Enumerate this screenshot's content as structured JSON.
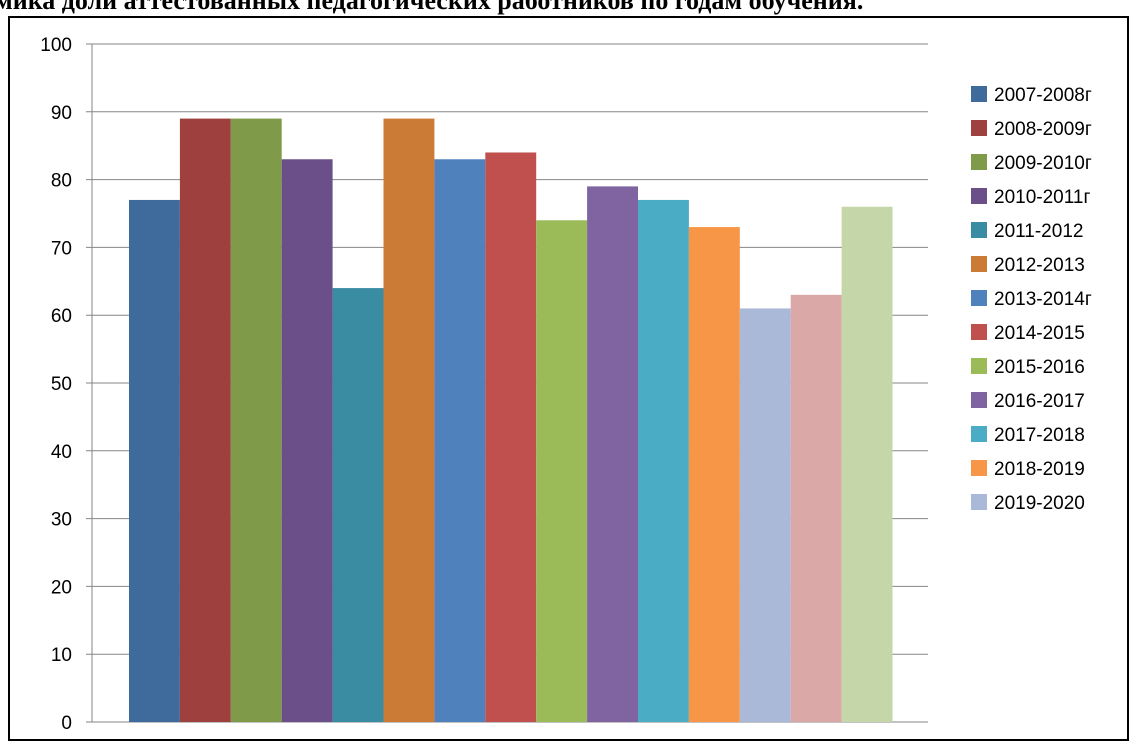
{
  "chart_data": {
    "type": "bar",
    "title": "амика доли аттестованных педагогических работников по годам обучения.",
    "xlabel": "",
    "ylabel": "",
    "ylim": [
      0,
      100
    ],
    "y_ticks": [
      0,
      10,
      20,
      30,
      40,
      50,
      60,
      70,
      80,
      90,
      100
    ],
    "grid": true,
    "legend_position": "right",
    "series": [
      {
        "name": "2007-2008г",
        "value": 77,
        "color": "#3f6a9c"
      },
      {
        "name": "2008-2009г",
        "value": 89,
        "color": "#9e413e"
      },
      {
        "name": "2009-2010г",
        "value": 89,
        "color": "#7f9a48"
      },
      {
        "name": "2010-2011г",
        "value": 83,
        "color": "#6a4f88"
      },
      {
        "name": "2011-2012",
        "value": 64,
        "color": "#3a8ca2"
      },
      {
        "name": "2012-2013",
        "value": 89,
        "color": "#cc7b37"
      },
      {
        "name": "2013-2014г",
        "value": 83,
        "color": "#4f81bd"
      },
      {
        "name": "2014-2015",
        "value": 84,
        "color": "#c0504d"
      },
      {
        "name": "2015-2016",
        "value": 74,
        "color": "#9bbb59"
      },
      {
        "name": "2016-2017",
        "value": 79,
        "color": "#8064a2"
      },
      {
        "name": "2017-2018",
        "value": 77,
        "color": "#4bacc6"
      },
      {
        "name": "2018-2019",
        "value": 73,
        "color": "#f79646"
      },
      {
        "name": "2019-2020",
        "value": 61,
        "color": "#aab9d7"
      },
      {
        "name": "",
        "value": 63,
        "color": "#d9a8a7"
      },
      {
        "name": "",
        "value": 76,
        "color": "#c5d7a9"
      }
    ]
  }
}
